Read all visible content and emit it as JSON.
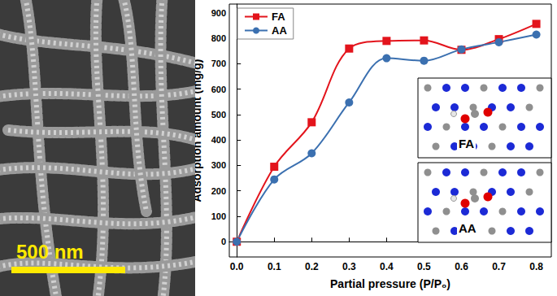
{
  "chart_data": {
    "type": "line",
    "xlabel": "Partial pressure (P/P₀)",
    "ylabel": "Adsorption amount (mg/g)",
    "x": [
      0,
      0.1,
      0.2,
      0.3,
      0.4,
      0.5,
      0.6,
      0.7,
      0.8
    ],
    "series": [
      {
        "name": "FA",
        "color": "#e3141c",
        "marker": "square",
        "line_style": "solid",
        "values": [
          0,
          295,
          470,
          760,
          790,
          792,
          755,
          797,
          857
        ]
      },
      {
        "name": "AA",
        "color": "#3b70b0",
        "marker": "circle",
        "line_style": "solid",
        "values": [
          0,
          245,
          348,
          548,
          722,
          712,
          757,
          785,
          815
        ]
      }
    ],
    "xlim": [
      -0.02,
      0.84
    ],
    "xticks": [
      {
        "value": 0,
        "label": "0.0"
      },
      {
        "value": 0.1,
        "label": "0.1"
      },
      {
        "value": 0.2,
        "label": "0.2"
      },
      {
        "value": 0.3,
        "label": "0.3"
      },
      {
        "value": 0.4,
        "label": "0.4"
      },
      {
        "value": 0.5,
        "label": "0.5"
      },
      {
        "value": 0.6,
        "label": "0.6"
      },
      {
        "value": 0.7,
        "label": "0.7"
      },
      {
        "value": 0.8,
        "label": "0.8"
      }
    ],
    "ylim": [
      -60,
      935
    ],
    "yticks": [
      0,
      100,
      200,
      300,
      400,
      500,
      600,
      700,
      800,
      900
    ],
    "grid": false,
    "legend": "upper left",
    "annotations": [
      "FA",
      "AA"
    ]
  },
  "image": {
    "scale_bar": "500 nm"
  }
}
